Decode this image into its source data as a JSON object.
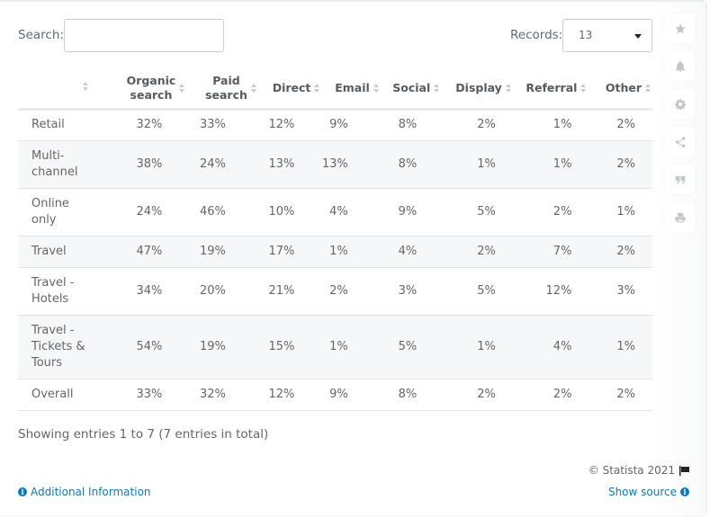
{
  "controls": {
    "search_label": "Search:",
    "search_value": "",
    "records_label": "Records:",
    "records_value": "13"
  },
  "side_buttons": [
    {
      "name": "favorite",
      "icon": "star-icon"
    },
    {
      "name": "notification",
      "icon": "bell-icon"
    },
    {
      "name": "settings",
      "icon": "gear-icon"
    },
    {
      "name": "share",
      "icon": "share-icon"
    },
    {
      "name": "citation",
      "icon": "quote-icon"
    },
    {
      "name": "print",
      "icon": "print-icon"
    }
  ],
  "table": {
    "headers": [
      "",
      "Organic search",
      "Paid search",
      "Direct",
      "Email",
      "Social",
      "Display",
      "Referral",
      "Other"
    ],
    "header_lines": [
      [
        ""
      ],
      [
        "Organic",
        "search"
      ],
      [
        "Paid",
        "search"
      ],
      [
        "Direct"
      ],
      [
        "Email"
      ],
      [
        "Social"
      ],
      [
        "Display"
      ],
      [
        "Referral"
      ],
      [
        "Other"
      ]
    ],
    "rows": [
      {
        "label": "Retail",
        "values": [
          "32%",
          "33%",
          "12%",
          "9%",
          "8%",
          "2%",
          "1%",
          "2%"
        ]
      },
      {
        "label": "Multi-channel",
        "values": [
          "38%",
          "24%",
          "13%",
          "13%",
          "8%",
          "1%",
          "1%",
          "2%"
        ]
      },
      {
        "label": "Online only",
        "values": [
          "24%",
          "46%",
          "10%",
          "4%",
          "9%",
          "5%",
          "2%",
          "1%"
        ]
      },
      {
        "label": "Travel",
        "values": [
          "47%",
          "19%",
          "17%",
          "1%",
          "4%",
          "2%",
          "7%",
          "2%"
        ]
      },
      {
        "label": "Travel - Hotels",
        "values": [
          "34%",
          "20%",
          "21%",
          "2%",
          "3%",
          "5%",
          "12%",
          "3%"
        ]
      },
      {
        "label": "Travel - Tickets & Tours",
        "values": [
          "54%",
          "19%",
          "15%",
          "1%",
          "5%",
          "1%",
          "4%",
          "1%"
        ]
      },
      {
        "label": "Overall",
        "values": [
          "33%",
          "32%",
          "12%",
          "9%",
          "8%",
          "2%",
          "2%",
          "2%"
        ]
      }
    ]
  },
  "footer": {
    "entries_text": "Showing entries 1 to 7 (7 entries in total)",
    "copyright": "© Statista 2021",
    "additional_info": "Additional Information",
    "show_source": "Show source"
  },
  "colors": {
    "link": "#0b7bc1",
    "row_shade": "#f5f7f9",
    "header_text": "#555b63",
    "icon_gray": "#c1c6cd"
  }
}
